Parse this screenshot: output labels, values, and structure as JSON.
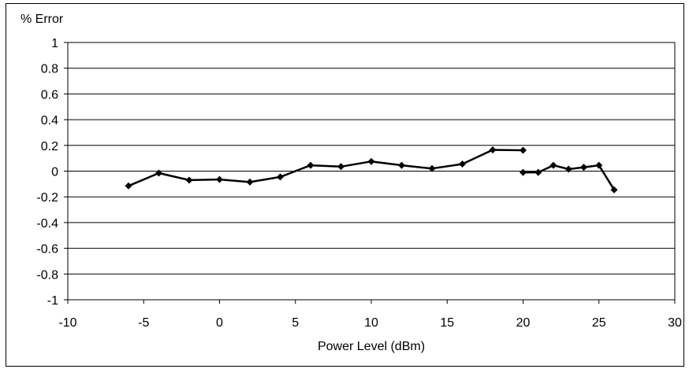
{
  "chart_data": {
    "type": "line",
    "title": "",
    "xlabel": "Power Level (dBm)",
    "ylabel": "% Error",
    "xlim": [
      -10,
      30
    ],
    "ylim": [
      -1,
      1
    ],
    "xticks": [
      "-10",
      "-5",
      "0",
      "5",
      "10",
      "15",
      "20",
      "25",
      "30"
    ],
    "yticks": [
      "1",
      "0.8",
      "0.6",
      "0.4",
      "0.2",
      "0",
      "-0.2",
      "-0.4",
      "-0.6",
      "-0.8",
      "-1"
    ],
    "grid": "horizontal",
    "legend": "none",
    "series": [
      {
        "x": [
          -6,
          -4,
          -2,
          0,
          2,
          4,
          6,
          8,
          10,
          12,
          14,
          16,
          18,
          20
        ],
        "y": [
          -0.115,
          -0.015,
          -0.07,
          -0.065,
          -0.085,
          -0.045,
          0.045,
          0.035,
          0.075,
          0.045,
          0.02,
          0.055,
          0.165,
          0.162
        ]
      },
      {
        "x": [
          20,
          21,
          22,
          23,
          24,
          25,
          26
        ],
        "y": [
          -0.01,
          -0.01,
          0.045,
          0.015,
          0.03,
          0.045,
          -0.145
        ]
      }
    ],
    "color": "#000000"
  }
}
